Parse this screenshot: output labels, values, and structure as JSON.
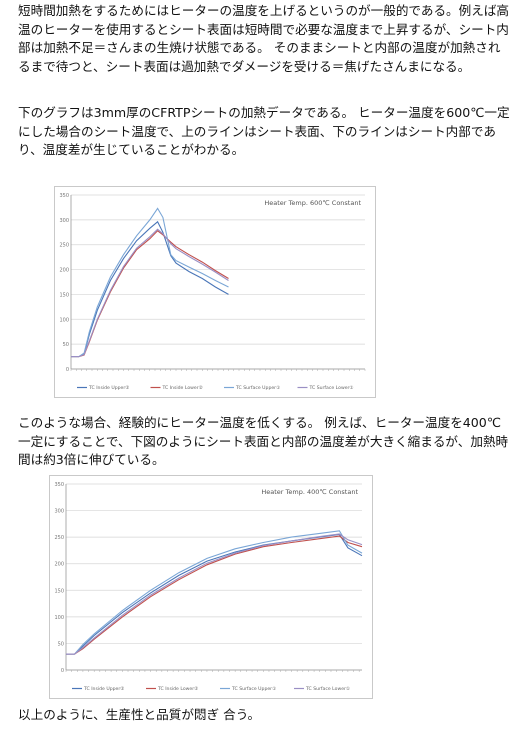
{
  "paragraphs": {
    "p1": "短時間加熱をするためにはヒーターの温度を上げるというのが一般的である。例えば高温のヒーターを使用するとシート表面は短時間で必要な温度まで上昇するが、シート内部は加熱不足＝さんまの生焼け状態である。 そのままシートと内部の温度が加熱されるまで待つと、シート表面は過加熱でダメージを受ける＝焦げたさんまになる。",
    "p2": "下のグラフは3mm厚のCFRTPシートの加熱データである。 ヒーター温度を600℃一定にした場合のシート温度で、上のラインはシート表面、下のラインはシート内部であり、温度差が生じていることがわかる。",
    "p3": "このような場合、経験的にヒーター温度を低くする。 例えば、ヒーター温度を400℃一定にすることで、下図のようにシート表面と内部の温度差が大きく縮まるが、加熱時間は約3倍に伸びている。",
    "p4": "以上のように、生産性と品質が悶ぎ 合う。"
  },
  "chart_data": [
    {
      "type": "line",
      "title": "Heater Temp. 600℃ Constant",
      "ylim": [
        0,
        350
      ],
      "yticks": [
        0,
        50,
        100,
        150,
        200,
        250,
        300,
        350
      ],
      "grid": true,
      "legend_position": "bottom",
      "x": [
        0,
        3,
        5,
        7,
        10,
        15,
        20,
        25,
        30,
        33,
        35,
        38,
        40,
        45,
        50,
        55,
        60
      ],
      "x_range": [
        0,
        112
      ],
      "series": [
        {
          "name": "TC Inside Upper②",
          "color": "#4a76b8",
          "values": [
            25,
            25,
            30,
            70,
            118,
            178,
            222,
            258,
            283,
            296,
            275,
            228,
            213,
            196,
            182,
            165,
            150
          ]
        },
        {
          "name": "TC Inside Lower②",
          "color": "#c0504d",
          "values": [
            25,
            25,
            28,
            55,
            98,
            155,
            203,
            240,
            262,
            278,
            270,
            255,
            246,
            230,
            215,
            198,
            182
          ]
        },
        {
          "name": "TC Surface Upper①",
          "color": "#7aa6d6",
          "values": [
            25,
            25,
            32,
            75,
            125,
            185,
            230,
            268,
            300,
            323,
            305,
            230,
            218,
            205,
            192,
            178,
            165
          ]
        },
        {
          "name": "TC Surface Lower①",
          "color": "#9a8fc4",
          "values": [
            25,
            25,
            29,
            57,
            100,
            158,
            206,
            243,
            266,
            281,
            272,
            252,
            242,
            226,
            211,
            195,
            178
          ]
        }
      ]
    },
    {
      "type": "line",
      "title": "Heater Temp. 400℃ Constant",
      "ylim": [
        0,
        350
      ],
      "yticks": [
        0,
        50,
        100,
        150,
        200,
        250,
        300,
        350
      ],
      "grid": true,
      "legend_position": "bottom",
      "x": [
        0,
        3,
        6,
        10,
        20,
        30,
        40,
        50,
        60,
        70,
        80,
        90,
        97,
        100,
        105
      ],
      "x_range": [
        0,
        105
      ],
      "series": [
        {
          "name": "TC Inside Upper②",
          "color": "#4a76b8",
          "values": [
            30,
            30,
            45,
            65,
            108,
            145,
            178,
            205,
            222,
            235,
            243,
            250,
            255,
            230,
            215
          ]
        },
        {
          "name": "TC Inside Lower②",
          "color": "#c0504d",
          "values": [
            30,
            30,
            40,
            58,
            100,
            138,
            170,
            198,
            218,
            232,
            240,
            247,
            252,
            240,
            232
          ]
        },
        {
          "name": "TC Surface Upper①",
          "color": "#7aa6d6",
          "values": [
            30,
            30,
            48,
            68,
            112,
            150,
            183,
            210,
            228,
            240,
            250,
            257,
            262,
            235,
            220
          ]
        },
        {
          "name": "TC Surface Lower①",
          "color": "#9a8fc4",
          "values": [
            30,
            30,
            42,
            60,
            103,
            141,
            173,
            201,
            220,
            234,
            243,
            251,
            256,
            245,
            236
          ]
        }
      ]
    }
  ]
}
